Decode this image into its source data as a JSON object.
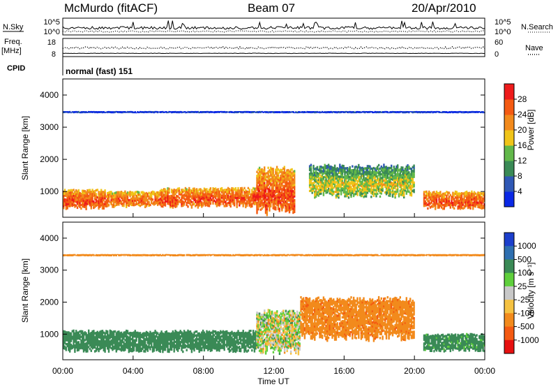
{
  "header": {
    "station": "McMurdo (fitACF)",
    "beam": "Beam 07",
    "date": "20/Apr/2010"
  },
  "panels": {
    "nsky_label": "N.Sky",
    "nsearch_label": "N.Search",
    "nsky_ticks": [
      "10^5",
      "10^0"
    ],
    "nsearch_ticks": [
      "10^5",
      "10^0"
    ],
    "freq_label": "Freq.",
    "freq_unit": "[MHz]",
    "freq_ticks": [
      "18",
      "8"
    ],
    "nave_label": "Nave",
    "nave_ticks": [
      "60",
      "0"
    ],
    "cpid_label": "CPID",
    "cpid_value": "normal (fast) 151"
  },
  "axes": {
    "ylabel": "Slant Range [km]",
    "xlabel": "Time UT",
    "x_ticks": [
      "00:00",
      "04:00",
      "08:00",
      "12:00",
      "16:00",
      "20:00",
      "00:00"
    ],
    "y_ticks": [
      "1000",
      "2000",
      "3000",
      "4000"
    ]
  },
  "power_scale": {
    "label": "Power [dB]",
    "ticks": [
      "4",
      "8",
      "12",
      "16",
      "20",
      "24",
      "28"
    ],
    "colors": [
      "#0a28e6",
      "#2f58b5",
      "#3a8a56",
      "#62b84a",
      "#f0c419",
      "#f28a1c",
      "#f45a12",
      "#ee1b1b"
    ]
  },
  "velocity_scale": {
    "label": "Velocity [m s⁻¹]",
    "ticks": [
      "1000",
      "500",
      "100",
      "25",
      "-25",
      "-100",
      "-500",
      "-1000"
    ],
    "colors": [
      "#1c3fcc",
      "#2e6fb0",
      "#3a8a56",
      "#5fcf3c",
      "#c8c8c8",
      "#f5c242",
      "#f28a1c",
      "#f45a12",
      "#e61010"
    ]
  },
  "chart_data": [
    {
      "type": "heatmap",
      "title": "",
      "xlabel": "Time UT",
      "ylabel": "Slant Range [km]",
      "colorbar_label": "Power [dB]",
      "xlim": [
        "00:00",
        "24:00"
      ],
      "ylim": [
        200,
        4500
      ],
      "zlim": [
        0,
        32
      ],
      "grid": false,
      "regions": [
        {
          "time": [
            0.0,
            2.5
          ],
          "range_km": [
            500,
            1050
          ],
          "power_db": 28
        },
        {
          "time": [
            2.5,
            5.5
          ],
          "range_km": [
            550,
            1000
          ],
          "power_db": 26
        },
        {
          "time": [
            5.5,
            11.0
          ],
          "range_km": [
            550,
            1100
          ],
          "power_db": 28
        },
        {
          "time": [
            11.0,
            13.2
          ],
          "range_km": [
            400,
            1700
          ],
          "power_db": 28
        },
        {
          "time": [
            14.0,
            20.0
          ],
          "range_km": [
            900,
            1800
          ],
          "power_db": 18
        },
        {
          "time": [
            20.5,
            24.0
          ],
          "range_km": [
            500,
            1000
          ],
          "power_db": 28
        },
        {
          "time": [
            0.0,
            24.0
          ],
          "range_km": [
            3450,
            3500
          ],
          "power_db": 6
        }
      ]
    },
    {
      "type": "heatmap",
      "title": "",
      "xlabel": "Time UT",
      "ylabel": "Slant Range [km]",
      "colorbar_label": "Velocity [m s⁻¹]",
      "xlim": [
        "00:00",
        "24:00"
      ],
      "ylim": [
        200,
        4500
      ],
      "zlim": [
        -1000,
        1000
      ],
      "grid": false,
      "regions": [
        {
          "time": [
            0.0,
            11.0
          ],
          "range_km": [
            500,
            1100
          ],
          "velocity_ms": 300
        },
        {
          "time": [
            11.0,
            13.5
          ],
          "range_km": [
            500,
            1700
          ],
          "velocity_ms": 0
        },
        {
          "time": [
            13.5,
            20.0
          ],
          "range_km": [
            900,
            2100
          ],
          "velocity_ms": -400
        },
        {
          "time": [
            20.5,
            24.0
          ],
          "range_km": [
            500,
            1000
          ],
          "velocity_ms": 200
        },
        {
          "time": [
            0.0,
            24.0
          ],
          "range_km": [
            3450,
            3500
          ],
          "velocity_ms": -300
        }
      ]
    }
  ]
}
